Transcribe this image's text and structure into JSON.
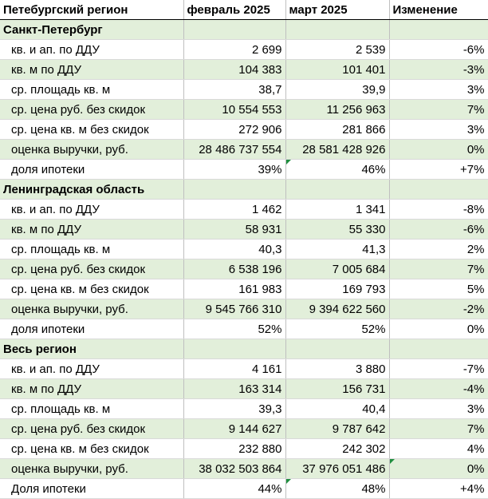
{
  "header": {
    "c0": "Петебургский регион",
    "c1": "февраль 2025",
    "c2": "март 2025",
    "c3": "Изменение"
  },
  "sections": [
    {
      "title": "Санкт-Петербург",
      "rows": [
        {
          "label": "кв. и ап. по ДДУ",
          "feb": "2 699",
          "mar": "2 539",
          "chg": "-6%"
        },
        {
          "label": "кв. м по ДДУ",
          "feb": "104 383",
          "mar": "101 401",
          "chg": "-3%"
        },
        {
          "label": "ср. площадь кв. м",
          "feb": "38,7",
          "mar": "39,9",
          "chg": "3%"
        },
        {
          "label": "ср. цена руб. без скидок",
          "feb": "10 554 553",
          "mar": "11 256 963",
          "chg": "7%"
        },
        {
          "label": "ср. цена кв. м без скидок",
          "feb": "272 906",
          "mar": "281 866",
          "chg": "3%"
        },
        {
          "label": "оценка выручки, руб.",
          "feb": "28 486 737 554",
          "mar": "28 581 428 926",
          "chg": "0%"
        },
        {
          "label": "доля ипотеки",
          "feb": "39%",
          "mar": "46%",
          "chg": "+7%"
        }
      ]
    },
    {
      "title": "Ленинградская область",
      "rows": [
        {
          "label": "кв. и ап. по ДДУ",
          "feb": "1 462",
          "mar": "1 341",
          "chg": "-8%"
        },
        {
          "label": "кв. м по ДДУ",
          "feb": "58 931",
          "mar": "55 330",
          "chg": "-6%"
        },
        {
          "label": "ср. площадь кв. м",
          "feb": "40,3",
          "mar": "41,3",
          "chg": "2%"
        },
        {
          "label": "ср. цена руб. без скидок",
          "feb": "6 538 196",
          "mar": "7 005 684",
          "chg": "7%"
        },
        {
          "label": "ср. цена кв. м без скидок",
          "feb": "161 983",
          "mar": "169 793",
          "chg": "5%"
        },
        {
          "label": "оценка выручки, руб.",
          "feb": "9 545 766 310",
          "mar": "9 394 622 560",
          "chg": "-2%"
        },
        {
          "label": "доля ипотеки",
          "feb": "52%",
          "mar": "52%",
          "chg": "0%"
        }
      ]
    },
    {
      "title": "Весь регион",
      "rows": [
        {
          "label": "кв. и ап. по ДДУ",
          "feb": "4 161",
          "mar": "3 880",
          "chg": "-7%"
        },
        {
          "label": "кв. м по ДДУ",
          "feb": "163 314",
          "mar": "156 731",
          "chg": "-4%"
        },
        {
          "label": "ср. площадь кв. м",
          "feb": "39,3",
          "mar": "40,4",
          "chg": "3%"
        },
        {
          "label": "ср. цена руб. без скидок",
          "feb": "9 144 627",
          "mar": "9 787 642",
          "chg": "7%"
        },
        {
          "label": "ср. цена кв. м без скидок",
          "feb": "232 880",
          "mar": "242 302",
          "chg": "4%"
        },
        {
          "label": "оценка выручки, руб.",
          "feb": "38 032 503 864",
          "mar": "37 976 051 486",
          "chg": "0%"
        },
        {
          "label": "Доля ипотеки",
          "feb": "44%",
          "mar": "48%",
          "chg": "+4%"
        }
      ]
    }
  ],
  "colors": {
    "band_green": "#e2efda",
    "corner_marker": "#1e8e3e"
  }
}
